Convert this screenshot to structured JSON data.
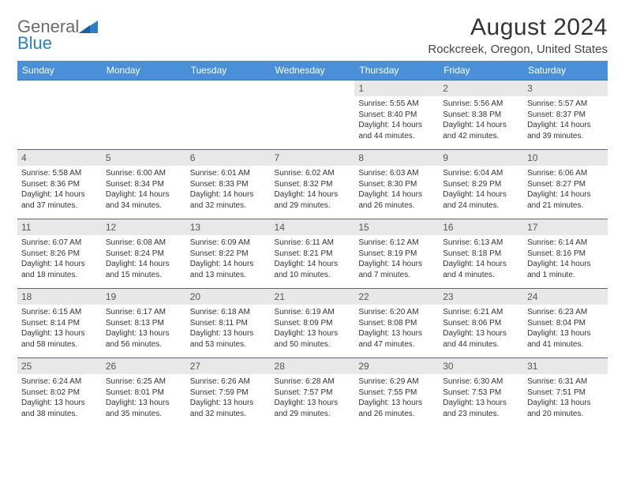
{
  "brand": {
    "part1": "General",
    "part2": "Blue"
  },
  "title": "August 2024",
  "location": "Rockcreek, Oregon, United States",
  "colors": {
    "header_bg": "#4a90d9",
    "header_fg": "#ffffff",
    "daynum_bg": "#e8e8e8",
    "cell_border": "#3a6ea5",
    "logo_gray": "#6b6b6b",
    "logo_blue": "#2b7fc4"
  },
  "weekdays": [
    "Sunday",
    "Monday",
    "Tuesday",
    "Wednesday",
    "Thursday",
    "Friday",
    "Saturday"
  ],
  "weeks": [
    [
      null,
      null,
      null,
      null,
      {
        "n": "1",
        "sr": "5:55 AM",
        "ss": "8:40 PM",
        "dl": "14 hours and 44 minutes."
      },
      {
        "n": "2",
        "sr": "5:56 AM",
        "ss": "8:38 PM",
        "dl": "14 hours and 42 minutes."
      },
      {
        "n": "3",
        "sr": "5:57 AM",
        "ss": "8:37 PM",
        "dl": "14 hours and 39 minutes."
      }
    ],
    [
      {
        "n": "4",
        "sr": "5:58 AM",
        "ss": "8:36 PM",
        "dl": "14 hours and 37 minutes."
      },
      {
        "n": "5",
        "sr": "6:00 AM",
        "ss": "8:34 PM",
        "dl": "14 hours and 34 minutes."
      },
      {
        "n": "6",
        "sr": "6:01 AM",
        "ss": "8:33 PM",
        "dl": "14 hours and 32 minutes."
      },
      {
        "n": "7",
        "sr": "6:02 AM",
        "ss": "8:32 PM",
        "dl": "14 hours and 29 minutes."
      },
      {
        "n": "8",
        "sr": "6:03 AM",
        "ss": "8:30 PM",
        "dl": "14 hours and 26 minutes."
      },
      {
        "n": "9",
        "sr": "6:04 AM",
        "ss": "8:29 PM",
        "dl": "14 hours and 24 minutes."
      },
      {
        "n": "10",
        "sr": "6:06 AM",
        "ss": "8:27 PM",
        "dl": "14 hours and 21 minutes."
      }
    ],
    [
      {
        "n": "11",
        "sr": "6:07 AM",
        "ss": "8:26 PM",
        "dl": "14 hours and 18 minutes."
      },
      {
        "n": "12",
        "sr": "6:08 AM",
        "ss": "8:24 PM",
        "dl": "14 hours and 15 minutes."
      },
      {
        "n": "13",
        "sr": "6:09 AM",
        "ss": "8:22 PM",
        "dl": "14 hours and 13 minutes."
      },
      {
        "n": "14",
        "sr": "6:11 AM",
        "ss": "8:21 PM",
        "dl": "14 hours and 10 minutes."
      },
      {
        "n": "15",
        "sr": "6:12 AM",
        "ss": "8:19 PM",
        "dl": "14 hours and 7 minutes."
      },
      {
        "n": "16",
        "sr": "6:13 AM",
        "ss": "8:18 PM",
        "dl": "14 hours and 4 minutes."
      },
      {
        "n": "17",
        "sr": "6:14 AM",
        "ss": "8:16 PM",
        "dl": "14 hours and 1 minute."
      }
    ],
    [
      {
        "n": "18",
        "sr": "6:15 AM",
        "ss": "8:14 PM",
        "dl": "13 hours and 58 minutes."
      },
      {
        "n": "19",
        "sr": "6:17 AM",
        "ss": "8:13 PM",
        "dl": "13 hours and 56 minutes."
      },
      {
        "n": "20",
        "sr": "6:18 AM",
        "ss": "8:11 PM",
        "dl": "13 hours and 53 minutes."
      },
      {
        "n": "21",
        "sr": "6:19 AM",
        "ss": "8:09 PM",
        "dl": "13 hours and 50 minutes."
      },
      {
        "n": "22",
        "sr": "6:20 AM",
        "ss": "8:08 PM",
        "dl": "13 hours and 47 minutes."
      },
      {
        "n": "23",
        "sr": "6:21 AM",
        "ss": "8:06 PM",
        "dl": "13 hours and 44 minutes."
      },
      {
        "n": "24",
        "sr": "6:23 AM",
        "ss": "8:04 PM",
        "dl": "13 hours and 41 minutes."
      }
    ],
    [
      {
        "n": "25",
        "sr": "6:24 AM",
        "ss": "8:02 PM",
        "dl": "13 hours and 38 minutes."
      },
      {
        "n": "26",
        "sr": "6:25 AM",
        "ss": "8:01 PM",
        "dl": "13 hours and 35 minutes."
      },
      {
        "n": "27",
        "sr": "6:26 AM",
        "ss": "7:59 PM",
        "dl": "13 hours and 32 minutes."
      },
      {
        "n": "28",
        "sr": "6:28 AM",
        "ss": "7:57 PM",
        "dl": "13 hours and 29 minutes."
      },
      {
        "n": "29",
        "sr": "6:29 AM",
        "ss": "7:55 PM",
        "dl": "13 hours and 26 minutes."
      },
      {
        "n": "30",
        "sr": "6:30 AM",
        "ss": "7:53 PM",
        "dl": "13 hours and 23 minutes."
      },
      {
        "n": "31",
        "sr": "6:31 AM",
        "ss": "7:51 PM",
        "dl": "13 hours and 20 minutes."
      }
    ]
  ],
  "labels": {
    "sunrise": "Sunrise:",
    "sunset": "Sunset:",
    "daylight": "Daylight:"
  }
}
